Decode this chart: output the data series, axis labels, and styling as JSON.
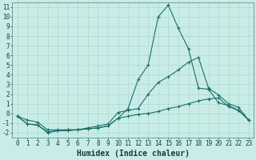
{
  "title": "",
  "xlabel": "Humidex (Indice chaleur)",
  "ylabel": "",
  "bg_color": "#c8ede8",
  "grid_color": "#afd8d0",
  "line_color": "#1a7068",
  "xlim": [
    -0.5,
    23.5
  ],
  "ylim": [
    -2.5,
    11.5
  ],
  "xticks": [
    0,
    1,
    2,
    3,
    4,
    5,
    6,
    7,
    8,
    9,
    10,
    11,
    12,
    13,
    14,
    15,
    16,
    17,
    18,
    19,
    20,
    21,
    22,
    23
  ],
  "yticks": [
    -2,
    -1,
    0,
    1,
    2,
    3,
    4,
    5,
    6,
    7,
    8,
    9,
    10,
    11
  ],
  "line1_x": [
    0,
    1,
    2,
    3,
    4,
    5,
    6,
    7,
    8,
    9,
    10,
    11,
    12,
    13,
    14,
    15,
    16,
    17,
    18,
    19,
    20,
    21,
    22,
    23
  ],
  "line1_y": [
    -0.3,
    -1.1,
    -1.2,
    -2.0,
    -1.8,
    -1.8,
    -1.7,
    -1.6,
    -1.5,
    -1.3,
    -0.5,
    0.5,
    3.5,
    5.0,
    10.0,
    11.2,
    8.8,
    6.7,
    2.6,
    2.5,
    1.1,
    0.8,
    0.3,
    -0.7
  ],
  "line2_x": [
    0,
    1,
    2,
    3,
    4,
    5,
    6,
    7,
    8,
    9,
    10,
    11,
    12,
    13,
    14,
    15,
    16,
    17,
    18,
    19,
    20,
    21,
    22,
    23
  ],
  "line2_y": [
    -0.3,
    -1.1,
    -1.2,
    -1.9,
    -1.8,
    -1.7,
    -1.7,
    -1.5,
    -1.3,
    -1.1,
    0.1,
    0.3,
    0.5,
    2.0,
    3.2,
    3.8,
    4.5,
    5.3,
    5.8,
    2.6,
    1.9,
    1.0,
    0.6,
    -0.7
  ],
  "line3_x": [
    0,
    1,
    2,
    3,
    4,
    5,
    6,
    7,
    8,
    9,
    10,
    11,
    12,
    13,
    14,
    15,
    16,
    17,
    18,
    19,
    20,
    21,
    22,
    23
  ],
  "line3_y": [
    -0.3,
    -0.7,
    -0.9,
    -1.7,
    -1.7,
    -1.7,
    -1.7,
    -1.6,
    -1.5,
    -1.3,
    -0.5,
    -0.3,
    -0.1,
    0.0,
    0.2,
    0.5,
    0.7,
    1.0,
    1.3,
    1.5,
    1.6,
    0.7,
    0.3,
    -0.7
  ],
  "font_family": "monospace",
  "tick_fontsize": 5.5,
  "label_fontsize": 7,
  "marker": "+",
  "markersize": 3
}
